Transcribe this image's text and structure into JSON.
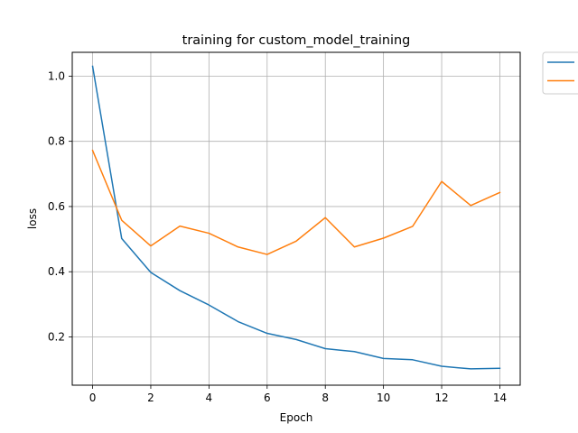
{
  "chart_data": {
    "type": "line",
    "title": "training for custom_model_training",
    "xlabel": "Epoch",
    "ylabel": "loss",
    "x": [
      0,
      1,
      2,
      3,
      4,
      5,
      6,
      7,
      8,
      9,
      10,
      11,
      12,
      13,
      14
    ],
    "xlim": [
      -0.7,
      14.7
    ],
    "ylim": [
      0.052,
      1.073
    ],
    "xticks": [
      0,
      2,
      4,
      6,
      8,
      10,
      12,
      14
    ],
    "yticks": [
      0.2,
      0.4,
      0.6,
      0.8,
      1.0
    ],
    "grid": true,
    "legend_placement": "outside top-right",
    "series": [
      {
        "color": "#1f77b4",
        "values": [
          1.03,
          0.502,
          0.398,
          0.342,
          0.298,
          0.247,
          0.211,
          0.192,
          0.164,
          0.155,
          0.134,
          0.13,
          0.11,
          0.102,
          0.104
        ]
      },
      {
        "color": "#ff7f0e",
        "values": [
          0.772,
          0.558,
          0.479,
          0.54,
          0.518,
          0.476,
          0.453,
          0.494,
          0.566,
          0.476,
          0.503,
          0.539,
          0.677,
          0.603,
          0.643
        ]
      }
    ]
  }
}
